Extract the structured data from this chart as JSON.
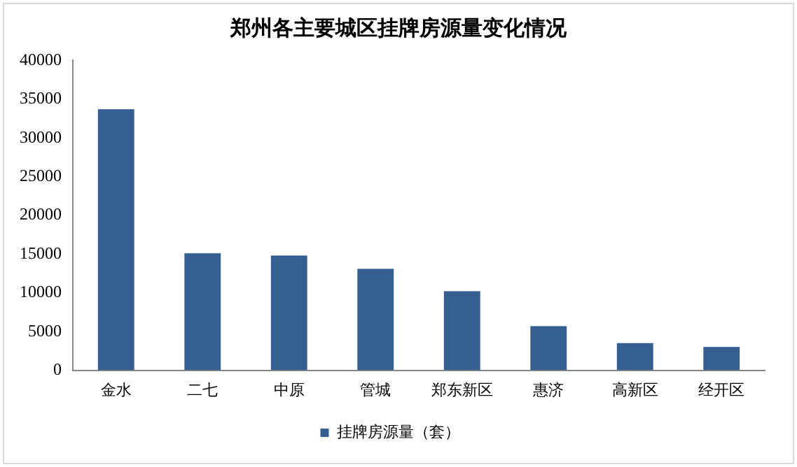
{
  "chart_data": {
    "type": "bar",
    "title": "郑州各主要城区挂牌房源量变化情况",
    "categories": [
      "金水",
      "二七",
      "中原",
      "管城",
      "郑东新区",
      "惠济",
      "高新区",
      "经开区"
    ],
    "series": [
      {
        "name": "挂牌房源量（套）",
        "color": "#365f91",
        "values": [
          33700,
          15100,
          14800,
          13100,
          10200,
          5700,
          3500,
          3000
        ]
      }
    ],
    "ylim": [
      0,
      40000
    ],
    "yticks": [
      0,
      5000,
      10000,
      15000,
      20000,
      25000,
      30000,
      35000,
      40000
    ],
    "grid": false,
    "legend": "bottom"
  }
}
